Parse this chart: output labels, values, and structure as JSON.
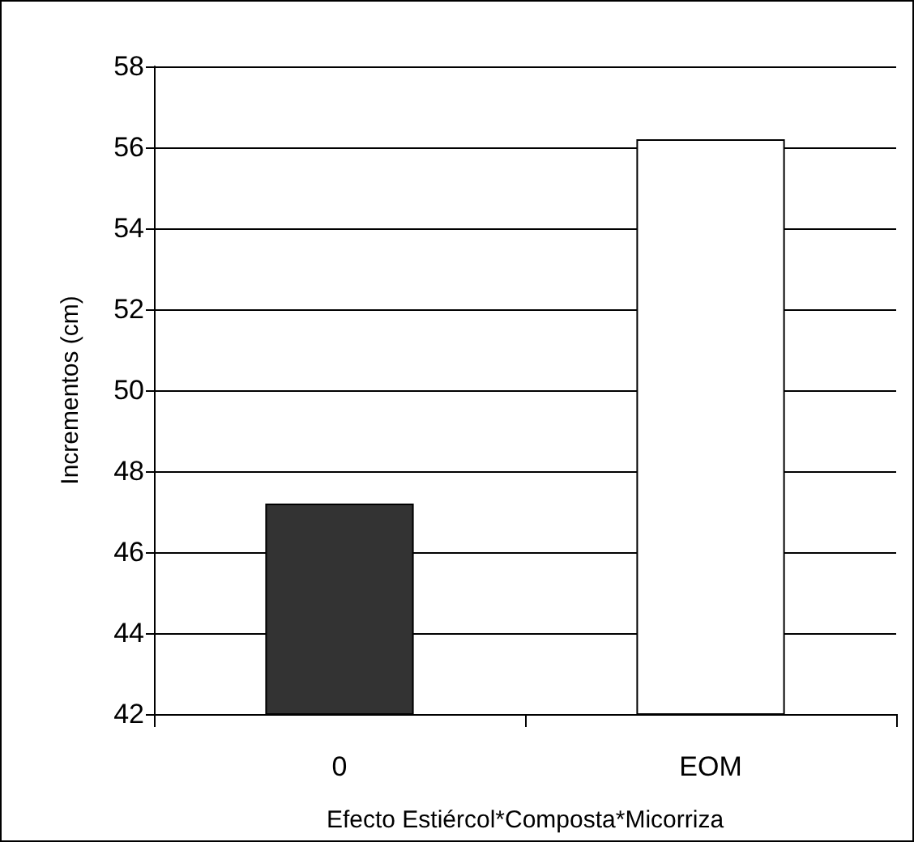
{
  "chart_data": {
    "type": "bar",
    "xlabel": "Efecto Estiércol*Composta*Micorriza",
    "ylabel": "Incrementos (cm)",
    "categories": [
      "0",
      "EOM"
    ],
    "values": [
      47.2,
      56.2
    ],
    "colors": [
      "#333333",
      "#ffffff"
    ],
    "ylim": [
      42,
      58
    ],
    "yticks": [
      42,
      44,
      46,
      48,
      50,
      52,
      54,
      56,
      58
    ],
    "grid": "y"
  }
}
